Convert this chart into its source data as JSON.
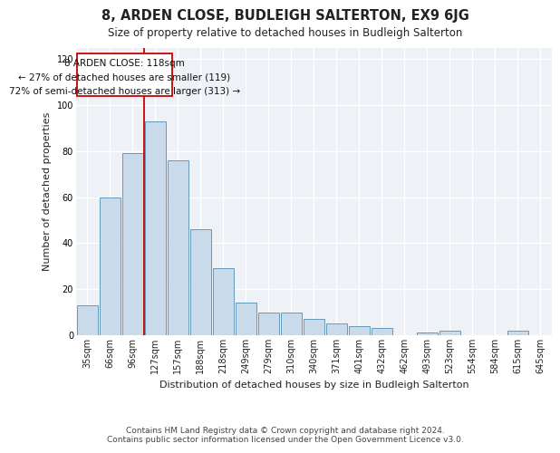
{
  "title": "8, ARDEN CLOSE, BUDLEIGH SALTERTON, EX9 6JG",
  "subtitle": "Size of property relative to detached houses in Budleigh Salterton",
  "xlabel": "Distribution of detached houses by size in Budleigh Salterton",
  "ylabel": "Number of detached properties",
  "footnote1": "Contains HM Land Registry data © Crown copyright and database right 2024.",
  "footnote2": "Contains public sector information licensed under the Open Government Licence v3.0.",
  "annotation_line1": "8 ARDEN CLOSE: 118sqm",
  "annotation_line2": "← 27% of detached houses are smaller (119)",
  "annotation_line3": "72% of semi-detached houses are larger (313) →",
  "bar_color": "#c9daea",
  "bar_edge_color": "#6699bb",
  "redline_color": "#cc0000",
  "background_color": "#eef2f7",
  "grid_color": "#ffffff",
  "categories": [
    "35sqm",
    "66sqm",
    "96sqm",
    "127sqm",
    "157sqm",
    "188sqm",
    "218sqm",
    "249sqm",
    "279sqm",
    "310sqm",
    "340sqm",
    "371sqm",
    "401sqm",
    "432sqm",
    "462sqm",
    "493sqm",
    "523sqm",
    "554sqm",
    "584sqm",
    "615sqm",
    "645sqm"
  ],
  "values": [
    13,
    60,
    79,
    93,
    76,
    46,
    29,
    14,
    10,
    10,
    7,
    5,
    4,
    3,
    0,
    1,
    2,
    0,
    0,
    2,
    0
  ],
  "ylim": [
    0,
    125
  ],
  "yticks": [
    0,
    20,
    40,
    60,
    80,
    100,
    120
  ],
  "title_fontsize": 10.5,
  "subtitle_fontsize": 8.5,
  "ylabel_fontsize": 8,
  "xlabel_fontsize": 8,
  "tick_fontsize": 7,
  "annotation_fontsize": 7.5,
  "footnote_fontsize": 6.5
}
